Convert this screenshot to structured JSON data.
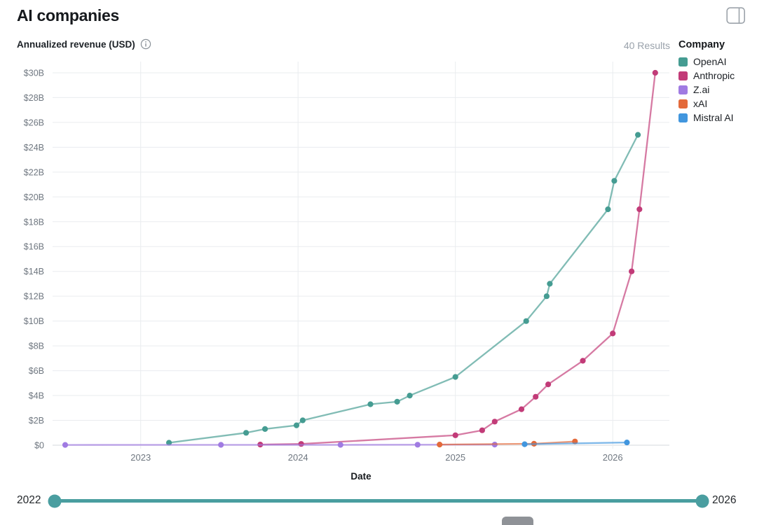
{
  "header": {
    "title": "AI companies"
  },
  "subheader": {
    "subtitle": "Annualized revenue (USD)",
    "results": "40 Results",
    "legend_title": "Company"
  },
  "slider": {
    "min_label": "2022",
    "max_label": "2026",
    "color": "#4A9EA0"
  },
  "colors": {
    "grid": "#eaecef",
    "baseline": "#d6d9de",
    "tick_text": "#6f7780",
    "results_text": "#9aa2ab"
  },
  "chart_data": {
    "type": "line",
    "title": "AI companies",
    "ylabel": "Annualized revenue (USD)",
    "xlabel": "Date",
    "x_range": [
      2022.44,
      2026.36
    ],
    "ylim": [
      0,
      30.9
    ],
    "grid": true,
    "legend_position": "top-right",
    "x_ticks": [
      {
        "v": 2023,
        "label": "2023"
      },
      {
        "v": 2024,
        "label": "2024"
      },
      {
        "v": 2025,
        "label": "2025"
      },
      {
        "v": 2026,
        "label": "2026"
      }
    ],
    "y_ticks": [
      {
        "v": 0,
        "label": "$0"
      },
      {
        "v": 2,
        "label": "$2B"
      },
      {
        "v": 4,
        "label": "$4B"
      },
      {
        "v": 6,
        "label": "$6B"
      },
      {
        "v": 8,
        "label": "$8B"
      },
      {
        "v": 10,
        "label": "$10B"
      },
      {
        "v": 12,
        "label": "$12B"
      },
      {
        "v": 14,
        "label": "$14B"
      },
      {
        "v": 16,
        "label": "$16B"
      },
      {
        "v": 18,
        "label": "$18B"
      },
      {
        "v": 20,
        "label": "$20B"
      },
      {
        "v": 22,
        "label": "$22B"
      },
      {
        "v": 24,
        "label": "$24B"
      },
      {
        "v": 26,
        "label": "$26B"
      },
      {
        "v": 28,
        "label": "$28B"
      },
      {
        "v": 30,
        "label": "$30B"
      }
    ],
    "series": [
      {
        "name": "OpenAI",
        "color": "#459C92",
        "points": [
          [
            2023.18,
            0.2
          ],
          [
            2023.67,
            1.0
          ],
          [
            2023.79,
            1.3
          ],
          [
            2023.99,
            1.6
          ],
          [
            2024.03,
            2.0
          ],
          [
            2024.46,
            3.3
          ],
          [
            2024.63,
            3.5
          ],
          [
            2024.71,
            4.0
          ],
          [
            2025.0,
            5.5
          ],
          [
            2025.45,
            10.0
          ],
          [
            2025.58,
            12.0
          ],
          [
            2025.6,
            13.0
          ],
          [
            2025.97,
            19.0
          ],
          [
            2026.01,
            21.3
          ],
          [
            2026.16,
            25.0
          ]
        ]
      },
      {
        "name": "Anthropic",
        "color": "#C23B78",
        "points": [
          [
            2023.76,
            0.05
          ],
          [
            2024.02,
            0.1
          ],
          [
            2025.0,
            0.8
          ],
          [
            2025.17,
            1.2
          ],
          [
            2025.25,
            1.9
          ],
          [
            2025.42,
            2.9
          ],
          [
            2025.51,
            3.9
          ],
          [
            2025.59,
            4.9
          ],
          [
            2025.81,
            6.8
          ],
          [
            2026.0,
            9.0
          ],
          [
            2026.12,
            14.0
          ],
          [
            2026.17,
            19.0
          ],
          [
            2026.27,
            30.0
          ]
        ]
      },
      {
        "name": "Z.ai",
        "color": "#A07BE2",
        "points": [
          [
            2022.52,
            0.02
          ],
          [
            2023.51,
            0.03
          ],
          [
            2024.27,
            0.03
          ],
          [
            2024.76,
            0.04
          ],
          [
            2025.25,
            0.05
          ]
        ]
      },
      {
        "name": "xAI",
        "color": "#E36A3B",
        "points": [
          [
            2024.9,
            0.05
          ],
          [
            2025.5,
            0.12
          ],
          [
            2025.76,
            0.3
          ]
        ]
      },
      {
        "name": "Mistral AI",
        "color": "#4196DE",
        "points": [
          [
            2025.44,
            0.08
          ],
          [
            2026.09,
            0.22
          ]
        ]
      }
    ]
  }
}
